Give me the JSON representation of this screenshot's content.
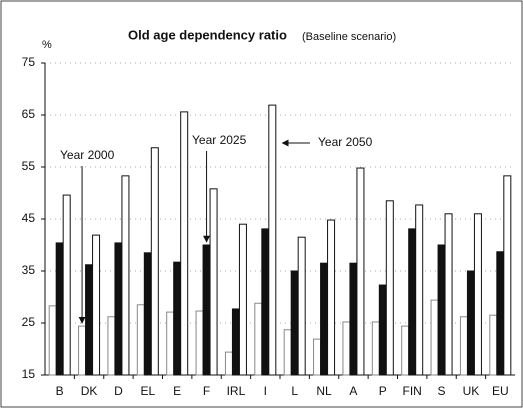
{
  "chart_data": {
    "type": "bar",
    "title": "Old age dependency ratio",
    "subtitle": "(Baseline scenario)",
    "y_label": "%",
    "categories": [
      "B",
      "DK",
      "D",
      "EL",
      "E",
      "F",
      "IRL",
      "I",
      "L",
      "NL",
      "A",
      "P",
      "FIN",
      "S",
      "UK",
      "EU"
    ],
    "series": [
      {
        "name": "Year 2000",
        "color": "#ffffff",
        "values": [
          28.3,
          24.4,
          26.2,
          28.5,
          27.1,
          27.3,
          19.4,
          28.8,
          23.7,
          21.9,
          25.2,
          25.2,
          24.4,
          29.4,
          26.2,
          26.5
        ]
      },
      {
        "name": "Year 2025",
        "color": "#111111",
        "values": [
          40.4,
          36.2,
          40.4,
          38.5,
          36.7,
          40.0,
          27.7,
          43.1,
          35.0,
          36.5,
          36.5,
          32.3,
          43.1,
          40.0,
          35.0,
          38.7
        ]
      },
      {
        "name": "Year 2050",
        "color": "#ffffff",
        "values": [
          49.6,
          41.9,
          53.3,
          58.7,
          65.6,
          50.8,
          44.0,
          66.9,
          41.5,
          44.8,
          54.8,
          48.5,
          47.7,
          46.0,
          46.0,
          53.3
        ]
      }
    ],
    "ylim": [
      15,
      75
    ],
    "yticks": [
      15,
      25,
      35,
      45,
      55,
      65,
      75
    ],
    "grid": true
  }
}
